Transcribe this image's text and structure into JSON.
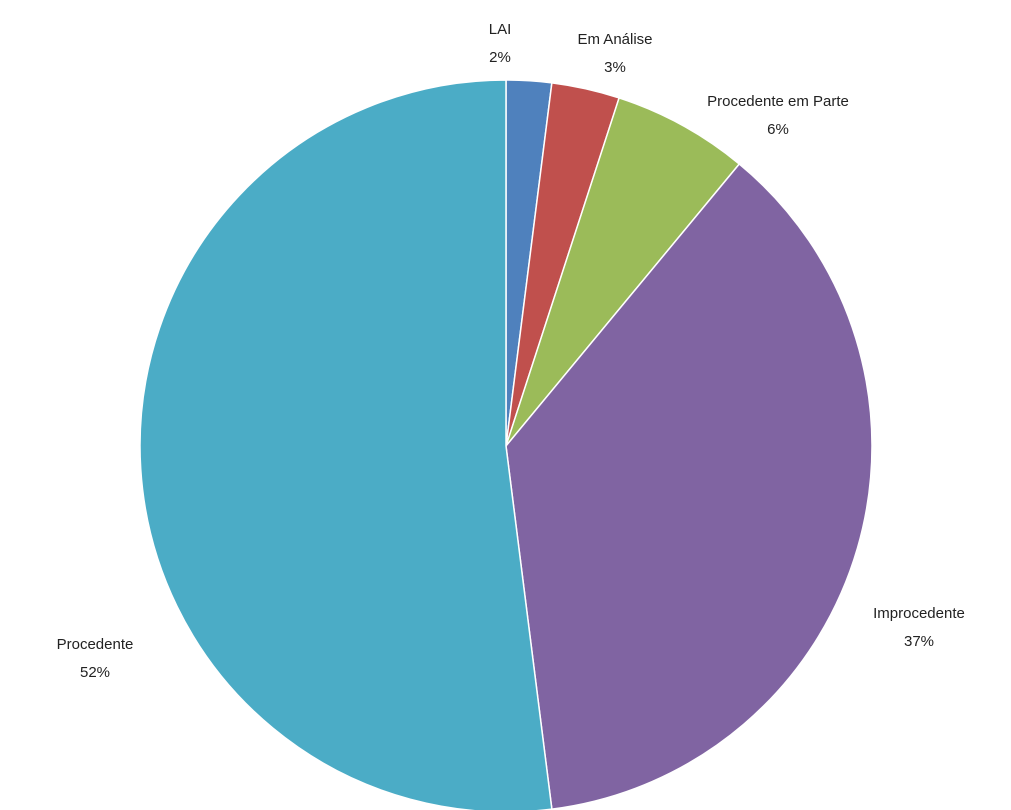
{
  "chart_data": {
    "type": "pie",
    "categories": [
      "LAI",
      "Em Análise",
      "Procedente em Parte",
      "Improcedente",
      "Procedente"
    ],
    "values": [
      2,
      3,
      6,
      37,
      52
    ],
    "value_labels": [
      "2%",
      "3%",
      "6%",
      "37%",
      "52%"
    ],
    "colors": [
      "#4f81bd",
      "#c0504d",
      "#9bbb59",
      "#8064a2",
      "#4bacc6"
    ]
  }
}
